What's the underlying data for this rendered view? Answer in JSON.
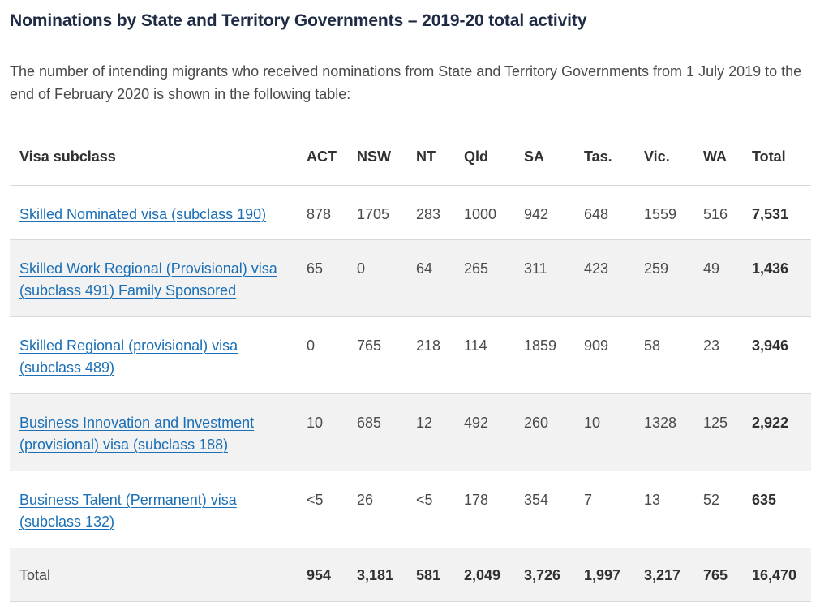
{
  "heading": "Nominations by State and Territory Governments – 2019-20 total activity",
  "intro": "The number of intending migrants who received nominations from State and Territory Governments from 1 July 2019 to the end of February 2020 is shown in the following table:",
  "table": {
    "headers": [
      "Visa subclass",
      "ACT",
      "NSW",
      "NT",
      "Qld",
      "SA",
      "Tas.",
      "Vic.",
      "WA",
      "Total"
    ],
    "rows": [
      {
        "label": "Skilled Nominated visa (subclass 190)",
        "values": [
          "878",
          "1705",
          "283",
          "1000",
          "942",
          "648",
          "1559",
          "516"
        ],
        "total": "7,531"
      },
      {
        "label": "Skilled Work Regional (Provisional) visa (subclass 491) Family Sponsored",
        "values": [
          "65",
          "0",
          "64",
          "265",
          "311",
          "423",
          "259",
          "49"
        ],
        "total": "1,436"
      },
      {
        "label": "Skilled Regional (provisional) visa (subclass 489)",
        "values": [
          "0",
          "765",
          "218",
          "114",
          "1859",
          "909",
          "58",
          "23"
        ],
        "total": "3,946"
      },
      {
        "label": "Business Innovation and Investment (provisional) visa (subclass 188)",
        "values": [
          "10",
          "685",
          "12",
          "492",
          "260",
          "10",
          "1328",
          "125"
        ],
        "total": "2,922"
      },
      {
        "label": "Business Talent (Permanent) visa (subclass 132)",
        "values": [
          "<5",
          "26",
          "<5",
          "178",
          "354",
          "7",
          "13",
          "52"
        ],
        "total": "635"
      }
    ],
    "total_row": {
      "label": "Total",
      "values": [
        "954",
        "3,181",
        "581",
        "2,049",
        "3,726",
        "1,997",
        "3,217",
        "765"
      ],
      "total": "16,470"
    }
  },
  "colors": {
    "link": "#1a6fb6",
    "heading": "#1f2a44",
    "stripe": "#f2f2f2"
  }
}
